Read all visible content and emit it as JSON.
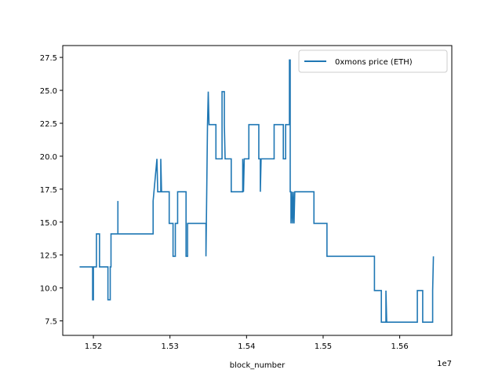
{
  "chart_data": {
    "type": "line",
    "title": "",
    "xlabel": "block_number",
    "ylabel": "",
    "x_offset_label": "1e7",
    "xlim": [
      1.516,
      1.5668
    ],
    "ylim": [
      6.4,
      28.4
    ],
    "x_ticks": [
      {
        "value": 1.52,
        "label": "1.52"
      },
      {
        "value": 1.53,
        "label": "1.53"
      },
      {
        "value": 1.54,
        "label": "1.54"
      },
      {
        "value": 1.55,
        "label": "1.55"
      },
      {
        "value": 1.56,
        "label": "1.56"
      }
    ],
    "y_ticks": [
      {
        "value": 7.5,
        "label": "7.5"
      },
      {
        "value": 10.0,
        "label": "10.0"
      },
      {
        "value": 12.5,
        "label": "12.5"
      },
      {
        "value": 15.0,
        "label": "15.0"
      },
      {
        "value": 17.5,
        "label": "17.5"
      },
      {
        "value": 20.0,
        "label": "20.0"
      },
      {
        "value": 22.5,
        "label": "22.5"
      },
      {
        "value": 25.0,
        "label": "25.0"
      },
      {
        "value": 27.5,
        "label": "27.5"
      }
    ],
    "grid": false,
    "legend_position": "top-right",
    "series": [
      {
        "name": "0xmons price (ETH)",
        "color": "#1f77b4",
        "points": [
          [
            1.5182,
            11.6
          ],
          [
            1.5199,
            11.6
          ],
          [
            1.5199,
            9.1
          ],
          [
            1.52,
            9.1
          ],
          [
            1.52,
            11.6
          ],
          [
            1.5204,
            11.6
          ],
          [
            1.5204,
            14.1
          ],
          [
            1.5208,
            14.1
          ],
          [
            1.5208,
            11.6
          ],
          [
            1.5219,
            11.6
          ],
          [
            1.5219,
            9.1
          ],
          [
            1.5222,
            9.1
          ],
          [
            1.5222,
            11.6
          ],
          [
            1.5223,
            11.6
          ],
          [
            1.5223,
            14.1
          ],
          [
            1.5232,
            14.1
          ],
          [
            1.5232,
            16.6
          ],
          [
            1.5232,
            14.1
          ],
          [
            1.5278,
            14.1
          ],
          [
            1.5278,
            16.6
          ],
          [
            1.5283,
            19.8
          ],
          [
            1.5284,
            17.3
          ],
          [
            1.5288,
            17.3
          ],
          [
            1.5288,
            19.8
          ],
          [
            1.5289,
            17.3
          ],
          [
            1.5299,
            17.3
          ],
          [
            1.5299,
            14.9
          ],
          [
            1.5304,
            14.9
          ],
          [
            1.5304,
            12.4
          ],
          [
            1.5307,
            12.4
          ],
          [
            1.5307,
            14.9
          ],
          [
            1.531,
            14.9
          ],
          [
            1.531,
            17.3
          ],
          [
            1.5321,
            17.3
          ],
          [
            1.5321,
            12.4
          ],
          [
            1.5323,
            12.4
          ],
          [
            1.5323,
            14.9
          ],
          [
            1.5347,
            14.9
          ],
          [
            1.5347,
            12.4
          ],
          [
            1.5348,
            17.3
          ],
          [
            1.5349,
            22.4
          ],
          [
            1.535,
            24.9
          ],
          [
            1.5351,
            22.4
          ],
          [
            1.536,
            22.4
          ],
          [
            1.536,
            19.8
          ],
          [
            1.5368,
            19.8
          ],
          [
            1.5368,
            24.9
          ],
          [
            1.5371,
            24.9
          ],
          [
            1.5371,
            22.4
          ],
          [
            1.5372,
            19.8
          ],
          [
            1.538,
            19.8
          ],
          [
            1.538,
            17.3
          ],
          [
            1.5395,
            17.3
          ],
          [
            1.5395,
            19.8
          ],
          [
            1.5396,
            17.3
          ],
          [
            1.5397,
            19.8
          ],
          [
            1.5403,
            19.8
          ],
          [
            1.5403,
            22.4
          ],
          [
            1.5416,
            22.4
          ],
          [
            1.5416,
            19.8
          ],
          [
            1.5418,
            19.8
          ],
          [
            1.5418,
            17.3
          ],
          [
            1.5419,
            19.8
          ],
          [
            1.5436,
            19.8
          ],
          [
            1.5436,
            22.4
          ],
          [
            1.5448,
            22.4
          ],
          [
            1.5448,
            19.8
          ],
          [
            1.5451,
            19.8
          ],
          [
            1.5451,
            22.4
          ],
          [
            1.5456,
            22.4
          ],
          [
            1.5456,
            27.3
          ],
          [
            1.5457,
            27.3
          ],
          [
            1.5457,
            17.3
          ],
          [
            1.5458,
            17.3
          ],
          [
            1.5458,
            14.9
          ],
          [
            1.5459,
            17.3
          ],
          [
            1.546,
            14.9
          ],
          [
            1.5461,
            17.3
          ],
          [
            1.5462,
            14.9
          ],
          [
            1.5463,
            17.3
          ],
          [
            1.5488,
            17.3
          ],
          [
            1.5488,
            14.9
          ],
          [
            1.5505,
            14.9
          ],
          [
            1.5505,
            12.4
          ],
          [
            1.5567,
            12.4
          ],
          [
            1.5567,
            9.8
          ],
          [
            1.5576,
            9.8
          ],
          [
            1.5576,
            7.4
          ],
          [
            1.5582,
            7.4
          ],
          [
            1.5582,
            9.8
          ],
          [
            1.5583,
            7.4
          ],
          [
            1.5623,
            7.4
          ],
          [
            1.5623,
            9.8
          ],
          [
            1.563,
            9.8
          ],
          [
            1.563,
            7.4
          ],
          [
            1.5643,
            7.4
          ],
          [
            1.5643,
            9.8
          ],
          [
            1.5644,
            12.4
          ]
        ]
      }
    ]
  }
}
